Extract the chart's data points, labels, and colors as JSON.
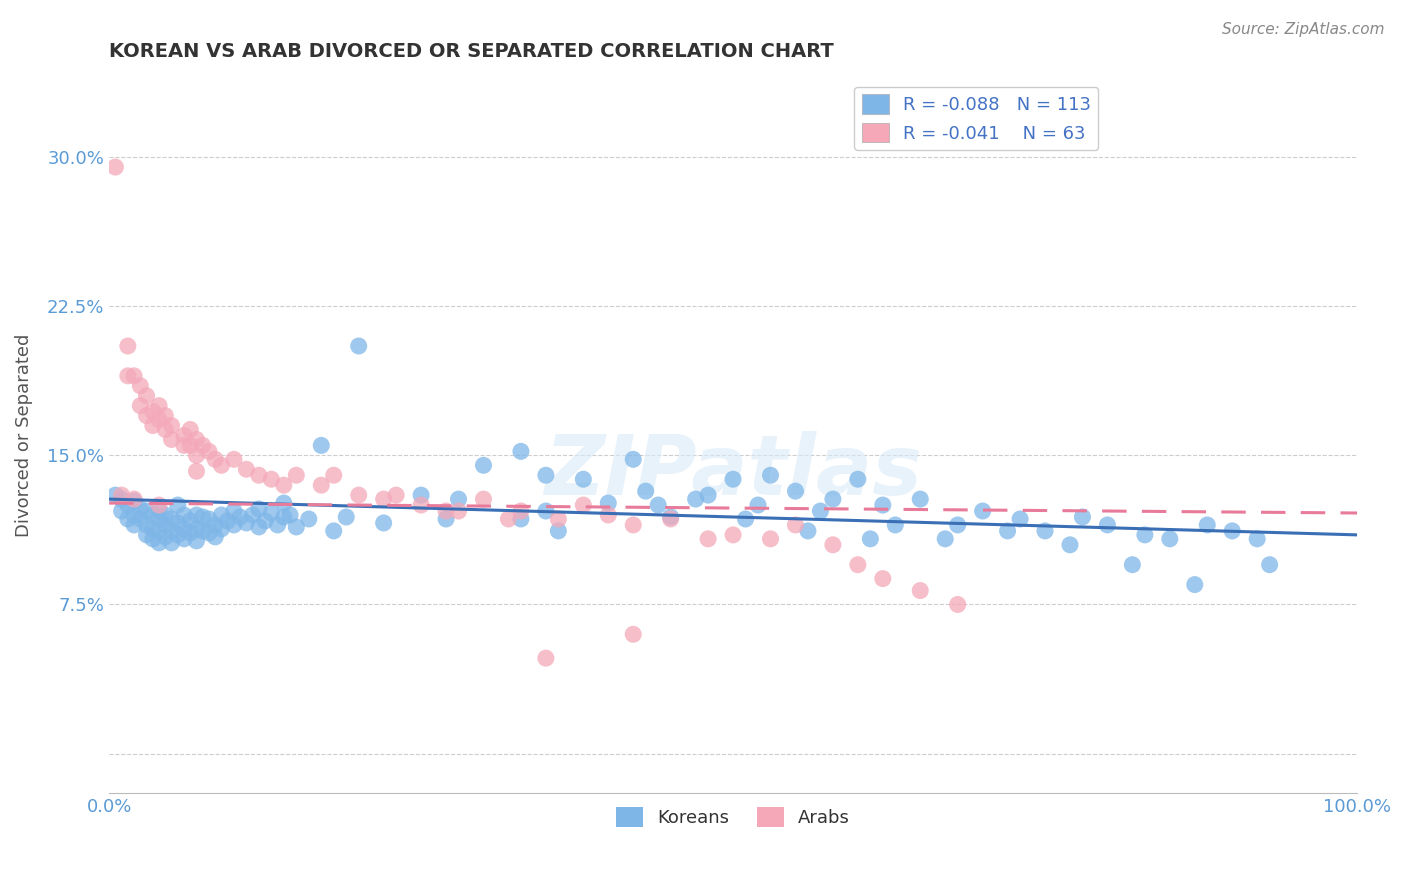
{
  "title": "KOREAN VS ARAB DIVORCED OR SEPARATED CORRELATION CHART",
  "source": "Source: ZipAtlas.com",
  "ylabel": "Divorced or Separated",
  "xlim": [
    0.0,
    1.0
  ],
  "ylim": [
    -0.02,
    0.34
  ],
  "yticks": [
    0.0,
    0.075,
    0.15,
    0.225,
    0.3
  ],
  "ytick_labels": [
    "",
    "7.5%",
    "15.0%",
    "22.5%",
    "30.0%"
  ],
  "xtick_labels": [
    "0.0%",
    "100.0%"
  ],
  "legend_labels": [
    "Koreans",
    "Arabs"
  ],
  "korean_R": -0.088,
  "korean_N": 113,
  "arab_R": -0.041,
  "arab_N": 63,
  "korean_color": "#7EB6E8",
  "arab_color": "#F4A8B8",
  "korean_line_color": "#3A6FB5",
  "arab_line_color": "#E87A9A",
  "watermark": "ZIPatlas",
  "k_slope": -0.018,
  "k_intercept": 0.128,
  "a_slope": -0.005,
  "a_intercept": 0.126,
  "korean_x": [
    0.005,
    0.01,
    0.01,
    0.015,
    0.015,
    0.02,
    0.02,
    0.02,
    0.025,
    0.025,
    0.03,
    0.03,
    0.03,
    0.035,
    0.035,
    0.035,
    0.04,
    0.04,
    0.04,
    0.04,
    0.045,
    0.045,
    0.045,
    0.05,
    0.05,
    0.05,
    0.055,
    0.055,
    0.055,
    0.06,
    0.06,
    0.06,
    0.065,
    0.065,
    0.07,
    0.07,
    0.07,
    0.075,
    0.075,
    0.08,
    0.08,
    0.085,
    0.085,
    0.09,
    0.09,
    0.095,
    0.1,
    0.1,
    0.105,
    0.11,
    0.115,
    0.12,
    0.12,
    0.125,
    0.13,
    0.135,
    0.14,
    0.14,
    0.145,
    0.15,
    0.16,
    0.17,
    0.18,
    0.19,
    0.2,
    0.22,
    0.25,
    0.27,
    0.3,
    0.33,
    0.35,
    0.38,
    0.4,
    0.43,
    0.45,
    0.47,
    0.5,
    0.52,
    0.53,
    0.55,
    0.58,
    0.6,
    0.62,
    0.65,
    0.68,
    0.7,
    0.73,
    0.75,
    0.78,
    0.8,
    0.83,
    0.85,
    0.88,
    0.9,
    0.93,
    0.42,
    0.48,
    0.35,
    0.28,
    0.57,
    0.63,
    0.67,
    0.72,
    0.77,
    0.82,
    0.87,
    0.92,
    0.33,
    0.36,
    0.44,
    0.51,
    0.56,
    0.61
  ],
  "korean_y": [
    0.13,
    0.128,
    0.122,
    0.125,
    0.118,
    0.127,
    0.12,
    0.115,
    0.123,
    0.118,
    0.122,
    0.115,
    0.11,
    0.12,
    0.113,
    0.108,
    0.118,
    0.112,
    0.106,
    0.122,
    0.115,
    0.109,
    0.12,
    0.118,
    0.112,
    0.106,
    0.116,
    0.11,
    0.125,
    0.12,
    0.113,
    0.108,
    0.117,
    0.111,
    0.12,
    0.113,
    0.107,
    0.119,
    0.112,
    0.118,
    0.111,
    0.115,
    0.109,
    0.12,
    0.113,
    0.117,
    0.122,
    0.115,
    0.119,
    0.116,
    0.12,
    0.114,
    0.123,
    0.117,
    0.121,
    0.115,
    0.119,
    0.126,
    0.12,
    0.114,
    0.118,
    0.155,
    0.112,
    0.119,
    0.205,
    0.116,
    0.13,
    0.118,
    0.145,
    0.152,
    0.122,
    0.138,
    0.126,
    0.132,
    0.119,
    0.128,
    0.138,
    0.125,
    0.14,
    0.132,
    0.128,
    0.138,
    0.125,
    0.128,
    0.115,
    0.122,
    0.118,
    0.112,
    0.119,
    0.115,
    0.11,
    0.108,
    0.115,
    0.112,
    0.095,
    0.148,
    0.13,
    0.14,
    0.128,
    0.122,
    0.115,
    0.108,
    0.112,
    0.105,
    0.095,
    0.085,
    0.108,
    0.118,
    0.112,
    0.125,
    0.118,
    0.112,
    0.108
  ],
  "arab_x": [
    0.005,
    0.01,
    0.015,
    0.015,
    0.02,
    0.02,
    0.025,
    0.025,
    0.03,
    0.03,
    0.035,
    0.035,
    0.04,
    0.04,
    0.04,
    0.045,
    0.045,
    0.05,
    0.05,
    0.06,
    0.06,
    0.065,
    0.065,
    0.07,
    0.07,
    0.07,
    0.075,
    0.08,
    0.085,
    0.09,
    0.1,
    0.11,
    0.12,
    0.13,
    0.14,
    0.15,
    0.17,
    0.18,
    0.2,
    0.22,
    0.25,
    0.28,
    0.3,
    0.33,
    0.36,
    0.38,
    0.4,
    0.42,
    0.45,
    0.5,
    0.53,
    0.55,
    0.58,
    0.6,
    0.62,
    0.65,
    0.68,
    0.35,
    0.23,
    0.27,
    0.32,
    0.48,
    0.42
  ],
  "arab_y": [
    0.295,
    0.13,
    0.19,
    0.205,
    0.19,
    0.128,
    0.175,
    0.185,
    0.18,
    0.17,
    0.172,
    0.165,
    0.175,
    0.168,
    0.125,
    0.17,
    0.163,
    0.165,
    0.158,
    0.16,
    0.155,
    0.163,
    0.155,
    0.158,
    0.15,
    0.142,
    0.155,
    0.152,
    0.148,
    0.145,
    0.148,
    0.143,
    0.14,
    0.138,
    0.135,
    0.14,
    0.135,
    0.14,
    0.13,
    0.128,
    0.125,
    0.122,
    0.128,
    0.122,
    0.118,
    0.125,
    0.12,
    0.115,
    0.118,
    0.11,
    0.108,
    0.115,
    0.105,
    0.095,
    0.088,
    0.082,
    0.075,
    0.048,
    0.13,
    0.122,
    0.118,
    0.108,
    0.06
  ]
}
